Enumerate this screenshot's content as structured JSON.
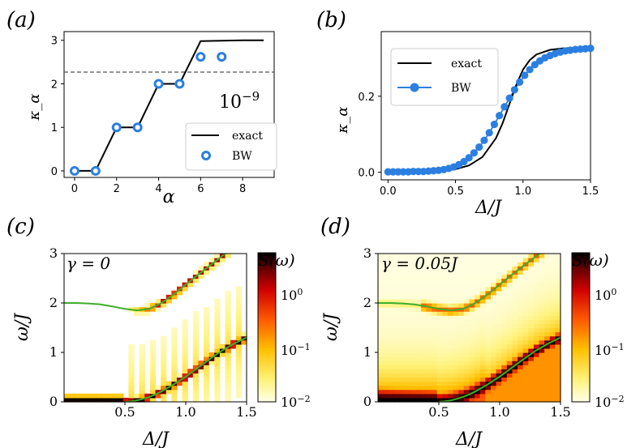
{
  "chart_data": [
    {
      "panel": "(a)",
      "type": "line",
      "xlabel": "α",
      "ylabel": "κ_α",
      "xlim": [
        -0.5,
        9.5
      ],
      "ylim": [
        -0.15,
        3.2
      ],
      "xticks": [
        "0",
        "2",
        "4",
        "6",
        "8"
      ],
      "yticks": [
        "0",
        "1",
        "2",
        "3"
      ],
      "annotation": "10^-9",
      "threshold": 2.27,
      "legend": {
        "placement": "lower-right",
        "entries": [
          "exact",
          "BW"
        ]
      },
      "series": [
        {
          "name": "exact",
          "style": "line",
          "color": "#000000",
          "x": [
            0,
            1,
            2,
            3,
            4,
            5,
            6,
            7,
            8,
            9
          ],
          "y": [
            0,
            0,
            1,
            1,
            2,
            2,
            2.98,
            2.99,
            3.0,
            3.0
          ]
        },
        {
          "name": "BW",
          "style": "open-circle",
          "color": "#2b7fe0",
          "x": [
            0,
            1,
            2,
            3,
            4,
            5,
            6,
            7
          ],
          "y": [
            0,
            0,
            1,
            1,
            2,
            2,
            2.62,
            2.62
          ]
        }
      ]
    },
    {
      "panel": "(b)",
      "type": "line",
      "xlabel": "Δ/J",
      "ylabel": "κ_α",
      "xlim": [
        -0.05,
        1.5
      ],
      "ylim": [
        -0.02,
        0.37
      ],
      "xticks": [
        "0.0",
        "0.5",
        "1.0",
        "1.5"
      ],
      "yticks": [
        "0.0",
        "0.2"
      ],
      "legend": {
        "placement": "upper-left",
        "entries": [
          "exact",
          "BW"
        ]
      },
      "series": [
        {
          "name": "exact",
          "style": "line",
          "color": "#000000",
          "x": [
            0.0,
            0.3,
            0.5,
            0.6,
            0.7,
            0.8,
            0.85,
            0.9,
            0.95,
            1.0,
            1.05,
            1.1,
            1.2,
            1.3,
            1.5
          ],
          "y": [
            0.0,
            0.002,
            0.008,
            0.018,
            0.04,
            0.09,
            0.13,
            0.18,
            0.23,
            0.27,
            0.295,
            0.31,
            0.322,
            0.326,
            0.328
          ]
        },
        {
          "name": "BW",
          "style": "line-dot",
          "color": "#2b7fe0",
          "x": [
            0.0,
            0.0375,
            0.075,
            0.1125,
            0.15,
            0.1875,
            0.225,
            0.2625,
            0.3,
            0.3375,
            0.375,
            0.4125,
            0.45,
            0.4875,
            0.525,
            0.5625,
            0.6,
            0.6375,
            0.675,
            0.7125,
            0.75,
            0.7875,
            0.825,
            0.8625,
            0.9,
            0.9375,
            0.975,
            1.0125,
            1.05,
            1.0875,
            1.125,
            1.1625,
            1.2,
            1.2375,
            1.275,
            1.3125,
            1.35,
            1.3875,
            1.425,
            1.4625,
            1.5
          ],
          "y": [
            0.001,
            0.001,
            0.001,
            0.001,
            0.001,
            0.002,
            0.002,
            0.002,
            0.003,
            0.004,
            0.005,
            0.007,
            0.01,
            0.014,
            0.02,
            0.028,
            0.038,
            0.051,
            0.066,
            0.084,
            0.104,
            0.126,
            0.149,
            0.172,
            0.195,
            0.217,
            0.237,
            0.255,
            0.27,
            0.283,
            0.293,
            0.301,
            0.307,
            0.312,
            0.316,
            0.319,
            0.321,
            0.323,
            0.324,
            0.325,
            0.326
          ]
        }
      ]
    },
    {
      "panel": "(c)",
      "type": "heatmap",
      "xlabel": "Δ/J",
      "ylabel": "ω/J",
      "annotation": "γ = 0",
      "colorbar_label": "S(ω)",
      "colorbar_ticks": [
        "10^0",
        "10^-1",
        "10^-2"
      ],
      "colormap": "hot_r",
      "xlim": [
        0,
        1.5
      ],
      "ylim": [
        0,
        3
      ],
      "xticks": [
        "0.5",
        "1.0",
        "1.5"
      ],
      "yticks": [
        "0",
        "1",
        "2",
        "3"
      ],
      "broadening": 0,
      "series": [
        {
          "name": "upper band",
          "color": "#3cae28",
          "x": [
            0.0,
            0.1,
            0.2,
            0.3,
            0.4,
            0.5,
            0.6,
            0.7,
            0.8,
            0.9,
            1.0,
            1.1,
            1.2,
            1.3,
            1.4,
            1.5
          ],
          "y": [
            2.0,
            2.0,
            1.99,
            1.97,
            1.93,
            1.88,
            1.85,
            1.88,
            2.0,
            2.17,
            2.37,
            2.57,
            2.76,
            2.95,
            3.13,
            3.3
          ]
        },
        {
          "name": "lower band",
          "color": "#3cae28",
          "x": [
            0.5,
            0.55,
            0.6,
            0.65,
            0.7,
            0.75,
            0.8,
            0.9,
            1.0,
            1.1,
            1.2,
            1.3,
            1.4,
            1.5
          ],
          "y": [
            0.0,
            0.01,
            0.03,
            0.06,
            0.1,
            0.15,
            0.21,
            0.35,
            0.51,
            0.69,
            0.87,
            1.04,
            1.18,
            1.3
          ]
        }
      ]
    },
    {
      "panel": "(d)",
      "type": "heatmap",
      "xlabel": "Δ/J",
      "ylabel": "ω/J",
      "annotation": "γ = 0.05J",
      "colorbar_label": "S(ω)",
      "colorbar_ticks": [
        "10^0",
        "10^-1",
        "10^-2"
      ],
      "colormap": "hot_r",
      "xlim": [
        0,
        1.5
      ],
      "ylim": [
        0,
        3
      ],
      "xticks": [
        "0.5",
        "1.0",
        "1.5"
      ],
      "yticks": [
        "0",
        "1",
        "2",
        "3"
      ],
      "broadening": 1,
      "series": [
        {
          "name": "upper band",
          "color": "#3cae28",
          "x": [
            0.0,
            0.1,
            0.2,
            0.3,
            0.4,
            0.5,
            0.6,
            0.7,
            0.8,
            0.9,
            1.0,
            1.1,
            1.2,
            1.3,
            1.4,
            1.5
          ],
          "y": [
            2.0,
            2.0,
            1.99,
            1.97,
            1.93,
            1.88,
            1.85,
            1.88,
            2.0,
            2.17,
            2.37,
            2.57,
            2.76,
            2.95,
            3.13,
            3.3
          ]
        },
        {
          "name": "lower band",
          "color": "#3cae28",
          "x": [
            0.5,
            0.55,
            0.6,
            0.65,
            0.7,
            0.75,
            0.8,
            0.9,
            1.0,
            1.1,
            1.2,
            1.3,
            1.4,
            1.5
          ],
          "y": [
            0.0,
            0.01,
            0.03,
            0.06,
            0.1,
            0.15,
            0.21,
            0.35,
            0.51,
            0.69,
            0.87,
            1.04,
            1.18,
            1.3
          ]
        }
      ]
    }
  ]
}
